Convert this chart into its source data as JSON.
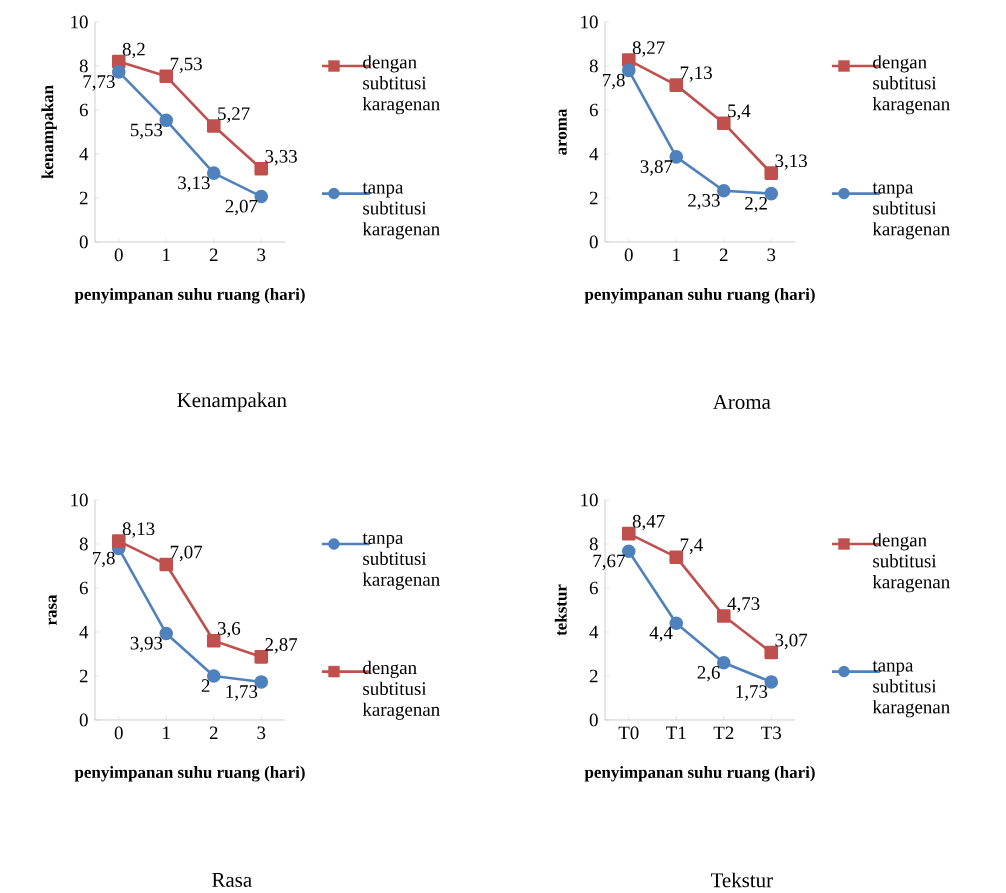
{
  "chart_data": [
    {
      "type": "line",
      "categories": [
        "0",
        "1",
        "2",
        "3"
      ],
      "xlabel": "penyimpanan suhu ruang (hari)",
      "ylabel": "kenampakan",
      "ylim": [
        0,
        10
      ],
      "yticks": [
        0,
        2,
        4,
        6,
        8,
        10
      ],
      "legend": "right",
      "annotations": [
        "Kenampakan"
      ],
      "series": [
        {
          "name": "dengan subtitusi karagenan",
          "color": "#c0504d",
          "marker": "square",
          "values": [
            8.2,
            7.53,
            5.27,
            3.33
          ],
          "value_labels": [
            "8,2",
            "7,53",
            "5,27",
            "3,33"
          ]
        },
        {
          "name": "tanpa subtitusi karagenan",
          "color": "#4f81bd",
          "marker": "circle",
          "values": [
            7.73,
            5.53,
            3.13,
            2.07
          ],
          "value_labels": [
            "7,73",
            "5,53",
            "3,13",
            "2,07"
          ]
        }
      ]
    },
    {
      "type": "line",
      "categories": [
        "0",
        "1",
        "2",
        "3"
      ],
      "xlabel": "penyimpanan suhu ruang (hari)",
      "ylabel": "aroma",
      "ylim": [
        0,
        10
      ],
      "yticks": [
        0,
        2,
        4,
        6,
        8,
        10
      ],
      "legend": "right",
      "annotations": [
        "Aroma"
      ],
      "series": [
        {
          "name": "dengan subtitusi karagenan",
          "color": "#c0504d",
          "marker": "square",
          "values": [
            8.27,
            7.13,
            5.4,
            3.13
          ],
          "value_labels": [
            "8,27",
            "7,13",
            "5,4",
            "3,13"
          ]
        },
        {
          "name": "tanpa subtitusi karagenan",
          "color": "#4f81bd",
          "marker": "circle",
          "values": [
            7.8,
            3.87,
            2.33,
            2.2
          ],
          "value_labels": [
            "7,8",
            "3,87",
            "2,33",
            "2,2"
          ]
        }
      ]
    },
    {
      "type": "line",
      "categories": [
        "0",
        "1",
        "2",
        "3"
      ],
      "xlabel": "penyimpanan suhu ruang (hari)",
      "ylabel": "rasa",
      "ylim": [
        0,
        10
      ],
      "yticks": [
        0,
        2,
        4,
        6,
        8,
        10
      ],
      "legend": "right",
      "annotations": [
        "Rasa"
      ],
      "series": [
        {
          "name": "tanpa subtitusi karagenan",
          "color": "#4f81bd",
          "marker": "circle",
          "values": [
            7.8,
            3.93,
            2,
            1.73
          ],
          "value_labels": [
            "7,8",
            "3,93",
            "2",
            "1,73"
          ]
        },
        {
          "name": "dengan subtitusi karagenan",
          "color": "#c0504d",
          "marker": "square",
          "values": [
            8.13,
            7.07,
            3.6,
            2.87
          ],
          "value_labels": [
            "8,13",
            "7,07",
            "3,6",
            "2,87"
          ]
        }
      ]
    },
    {
      "type": "line",
      "categories": [
        "T0",
        "T1",
        "T2",
        "T3"
      ],
      "xlabel": "penyimpanan suhu ruang (hari)",
      "ylabel": "tekstur",
      "ylim": [
        0,
        10
      ],
      "yticks": [
        0,
        2,
        4,
        6,
        8,
        10
      ],
      "legend": "right",
      "annotations": [
        "Tekstur"
      ],
      "series": [
        {
          "name": "dengan subtitusi karagenan",
          "color": "#c0504d",
          "marker": "square",
          "values": [
            8.47,
            7.4,
            4.73,
            3.07
          ],
          "value_labels": [
            "8,47",
            "7,4",
            "4,73",
            "3,07"
          ]
        },
        {
          "name": "tanpa subtitusi karagenan",
          "color": "#4f81bd",
          "marker": "circle",
          "values": [
            7.67,
            4.4,
            2.6,
            1.73
          ],
          "value_labels": [
            "7,67",
            "4,4",
            "2,6",
            "1,73"
          ]
        }
      ]
    }
  ]
}
